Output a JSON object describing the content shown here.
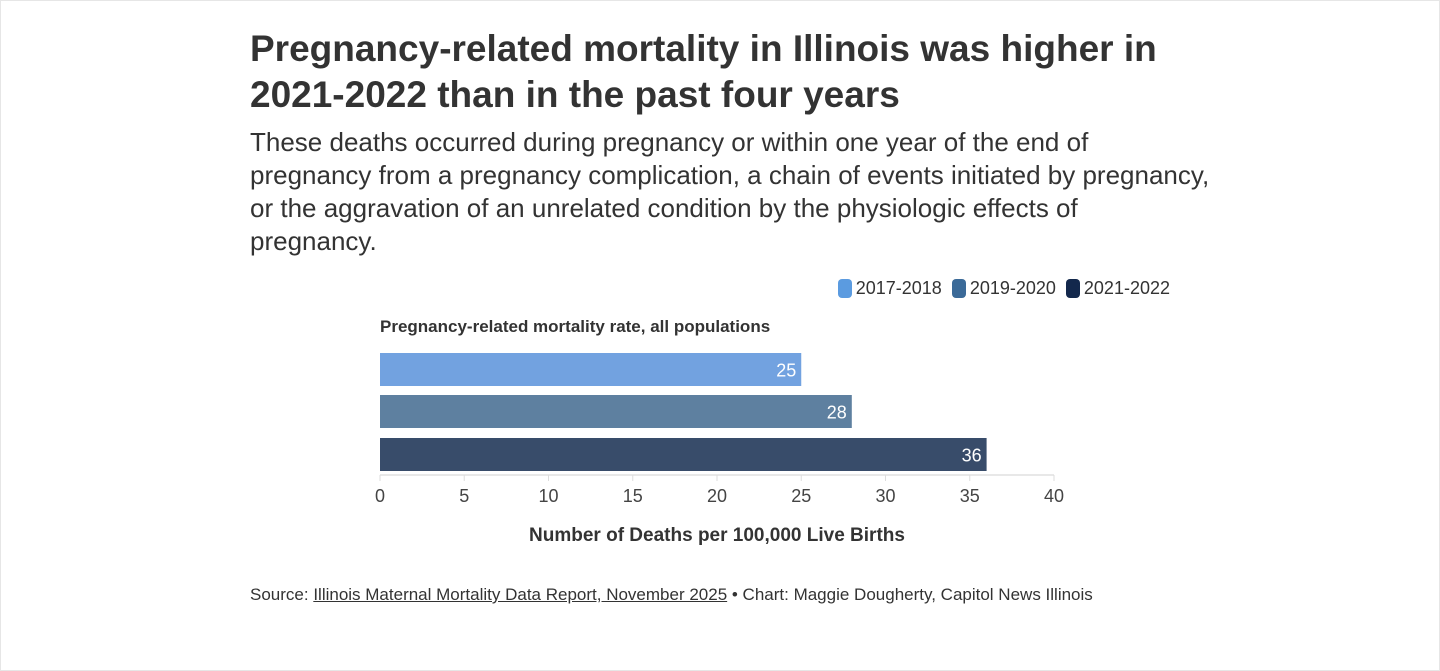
{
  "title": "Pregnancy-related mortality in Illinois was higher in 2021-2022 than in the past four years",
  "subtitle": "These deaths occurred during pregnancy or within one year of the end of pregnancy from a pregnancy complication, a chain of events initiated by pregnancy, or the aggravation of an unrelated condition by the physiologic effects of pregnancy.",
  "source": {
    "prefix": "Source: ",
    "link_text": "Illinois Maternal Mortality Data Report, November 2025",
    "suffix": " • Chart: Maggie Dougherty, Capitol News Illinois"
  },
  "chart_data": {
    "type": "bar",
    "orientation": "horizontal",
    "panel_title": "Pregnancy-related mortality rate, all populations",
    "categories": [
      "2017-2018",
      "2019-2020",
      "2021-2022"
    ],
    "values": [
      25,
      28,
      36
    ],
    "data_labels": [
      "25",
      "28",
      "36"
    ],
    "xlabel": "Number of Deaths per 100,000 Live Births",
    "xlim": [
      0,
      40
    ],
    "xticks": [
      "0",
      "5",
      "10",
      "15",
      "20",
      "25",
      "30",
      "35",
      "40"
    ],
    "grid": false,
    "legend": {
      "placement": "top-right",
      "entries": [
        "2017-2018",
        "2019-2020",
        "2021-2022"
      ],
      "colors": [
        "#5b9be0",
        "#3b6a98",
        "#13284c"
      ]
    },
    "bar_colors": [
      "#72a2e0",
      "#5e80a0",
      "#384c6a"
    ]
  }
}
